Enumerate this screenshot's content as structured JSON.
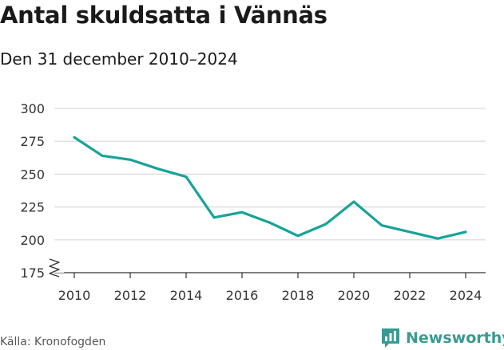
{
  "header": {
    "title": "Antal skuldsatta i Vännäs",
    "subtitle": "Den 31 december 2010–2024"
  },
  "footer": {
    "source": "Källa: Kronofogden",
    "brand": "Newsworthy",
    "brand_icon": "bar-chart-speech-bubble-icon"
  },
  "colors": {
    "line": "#17a398",
    "grid": "#d9d9d9",
    "axis": "#333333",
    "text": "#333333",
    "brand": "#3a9a92"
  },
  "chart_data": {
    "type": "line",
    "title": "Antal skuldsatta i Vännäs",
    "subtitle": "Den 31 december 2010–2024",
    "x": [
      2010,
      2011,
      2012,
      2013,
      2014,
      2015,
      2016,
      2017,
      2018,
      2019,
      2020,
      2021,
      2022,
      2023,
      2024
    ],
    "series": [
      {
        "values": [
          278,
          264,
          261,
          254,
          248,
          217,
          221,
          213,
          203,
          212,
          229,
          211,
          206,
          201,
          206
        ]
      }
    ],
    "x_ticks": [
      2010,
      2012,
      2014,
      2016,
      2018,
      2020,
      2022,
      2024
    ],
    "y_ticks": [
      175,
      200,
      225,
      250,
      275,
      300
    ],
    "ylim": [
      175,
      300
    ],
    "xlim": [
      2010,
      2024
    ],
    "axis_break": true,
    "grid": "horizontal",
    "xlabel": "",
    "ylabel": ""
  }
}
